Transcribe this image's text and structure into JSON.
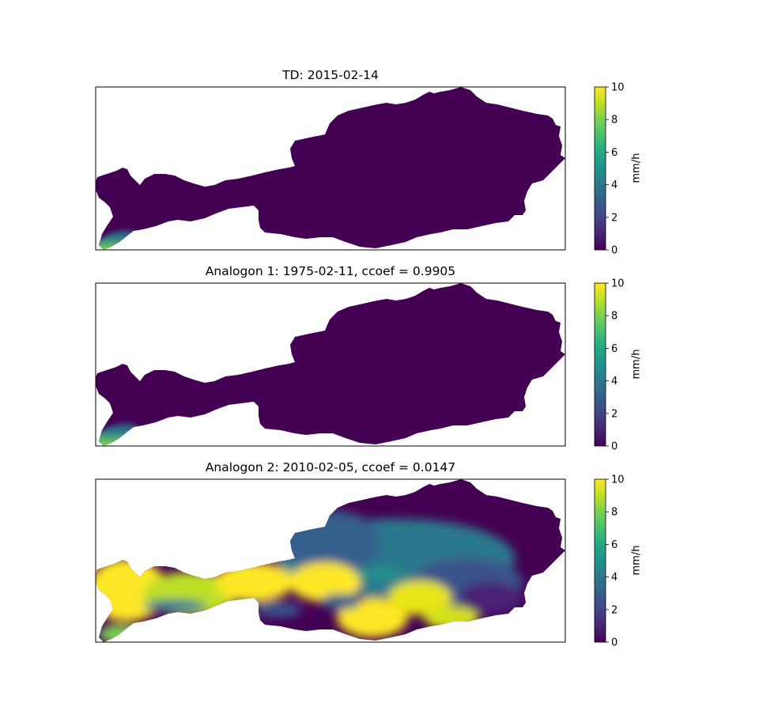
{
  "colormap": "viridis",
  "colors": {
    "low": "#440154",
    "mid": "#21918c",
    "high": "#fde725",
    "frame": "#000000",
    "background": "#ffffff"
  },
  "colorbar": {
    "label": "mm/h",
    "ticks": [
      "0",
      "2",
      "4",
      "6",
      "8",
      "10"
    ],
    "range": [
      0,
      10
    ]
  },
  "panels": [
    {
      "title": "TD: 2015-02-14"
    },
    {
      "title": "Analogon 1: 1975-02-11, ccoef = 0.9905"
    },
    {
      "title": "Analogon 2: 2010-02-05, ccoef = 0.0147"
    }
  ],
  "chart_data": {
    "type": "heatmap",
    "unit": "mm/h",
    "vmin": 0,
    "vmax": 10,
    "maps": [
      {
        "title": "TD: 2015-02-14",
        "note": "near-zero everywhere, small high-precipitation patch in far south-west"
      },
      {
        "title": "Analogon 1: 1975-02-11, ccoef = 0.9905",
        "note": "near-zero everywhere, small high-precipitation patch in far south-west"
      },
      {
        "title": "Analogon 2: 2010-02-05, ccoef = 0.0147",
        "note": "high values (up to 10) across west and south, low values in north-east"
      }
    ]
  }
}
